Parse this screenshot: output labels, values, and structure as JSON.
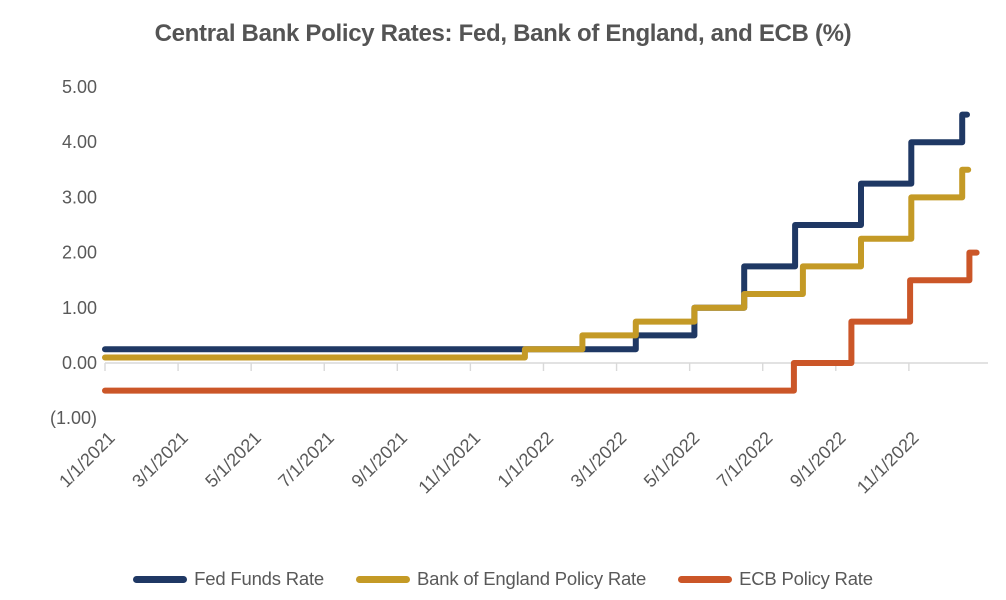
{
  "title": "Central Bank Policy Rates: Fed, Bank of England, and ECB (%)",
  "colors": {
    "text": "#595959",
    "title_text": "#545454",
    "axis_line": "#D9D9D9",
    "background": "#FFFFFF",
    "fed": "#1F3864",
    "boe": "#C49A26",
    "ecb": "#CB5628"
  },
  "chart_data": {
    "type": "line",
    "subtype": "step",
    "title": "Central Bank Policy Rates: Fed, Bank of England, and ECB (%)",
    "xlabel": "",
    "ylabel": "",
    "ylim": [
      -1,
      5
    ],
    "grid": false,
    "legend_position": "bottom",
    "y_ticks": [
      {
        "value": 5,
        "label": "5.00"
      },
      {
        "value": 4,
        "label": "4.00"
      },
      {
        "value": 3,
        "label": "3.00"
      },
      {
        "value": 2,
        "label": "2.00"
      },
      {
        "value": 1,
        "label": "1.00"
      },
      {
        "value": 0,
        "label": "0.00"
      },
      {
        "value": -1,
        "label": "(1.00)"
      }
    ],
    "x_start_date": "1/1/2021",
    "x_tick_interval_months": 2,
    "x_tick_labels": [
      "1/1/2021",
      "3/1/2021",
      "5/1/2021",
      "7/1/2021",
      "9/1/2021",
      "11/1/2021",
      "1/1/2022",
      "3/1/2022",
      "5/1/2022",
      "7/1/2022",
      "9/1/2022",
      "11/1/2022"
    ],
    "series": [
      {
        "name": "Fed Funds Rate",
        "slug": "fed-funds-rate",
        "color": "#1F3864",
        "end_date": "12/19/2022",
        "steps": [
          [
            "1/1/2021",
            0.25
          ],
          [
            "3/17/2022",
            0.5
          ],
          [
            "5/5/2022",
            1.0
          ],
          [
            "6/16/2022",
            1.75
          ],
          [
            "7/28/2022",
            2.5
          ],
          [
            "9/22/2022",
            3.25
          ],
          [
            "11/3/2022",
            4.0
          ],
          [
            "12/15/2022",
            4.5
          ]
        ]
      },
      {
        "name": "Bank of England Policy Rate",
        "slug": "bank-of-england-policy-rate",
        "color": "#C49A26",
        "end_date": "12/20/2022",
        "steps": [
          [
            "1/1/2021",
            0.1
          ],
          [
            "12/16/2021",
            0.25
          ],
          [
            "2/3/2022",
            0.5
          ],
          [
            "3/17/2022",
            0.75
          ],
          [
            "5/5/2022",
            1.0
          ],
          [
            "6/16/2022",
            1.25
          ],
          [
            "8/4/2022",
            1.75
          ],
          [
            "9/22/2022",
            2.25
          ],
          [
            "11/3/2022",
            3.0
          ],
          [
            "12/15/2022",
            3.5
          ]
        ]
      },
      {
        "name": "ECB Policy Rate",
        "slug": "ecb-policy-rate",
        "color": "#CB5628",
        "end_date": "12/27/2022",
        "steps": [
          [
            "1/1/2021",
            -0.5
          ],
          [
            "7/27/2022",
            0.0
          ],
          [
            "9/14/2022",
            0.75
          ],
          [
            "11/2/2022",
            1.5
          ],
          [
            "12/21/2022",
            2.0
          ]
        ]
      }
    ]
  }
}
